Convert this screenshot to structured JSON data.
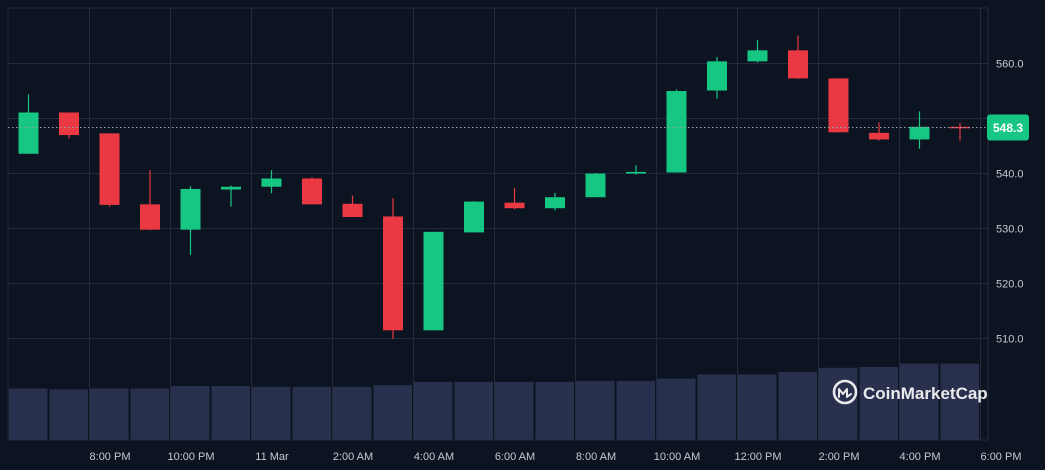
{
  "chart_data": {
    "type": "candlestick",
    "title": "",
    "xlabel": "",
    "ylabel": "",
    "ylim": [
      500,
      568
    ],
    "y_ticks": [
      510,
      520,
      530,
      540,
      550,
      560
    ],
    "y_tick_labels": [
      "510.0",
      "520.0",
      "530.0",
      "540.0",
      "",
      "560.0"
    ],
    "x_ticks": [
      "8:00 PM",
      "10:00 PM",
      "11 Mar",
      "2:00 AM",
      "4:00 AM",
      "6:00 AM",
      "8:00 AM",
      "10:00 AM",
      "12:00 PM",
      "2:00 PM",
      "4:00 PM",
      "6:00 PM"
    ],
    "grid": true,
    "current_price": 548.3,
    "current_price_label": "548.3",
    "candles": [
      {
        "o": 543.5,
        "h": 554.3,
        "l": 543.5,
        "c": 551.0
      },
      {
        "o": 551.0,
        "h": 551.0,
        "l": 546.3,
        "c": 546.9
      },
      {
        "o": 547.2,
        "h": 547.2,
        "l": 533.9,
        "c": 534.2
      },
      {
        "o": 534.3,
        "h": 540.5,
        "l": 529.6,
        "c": 529.7
      },
      {
        "o": 529.7,
        "h": 537.6,
        "l": 525.1,
        "c": 537.1
      },
      {
        "o": 537.0,
        "h": 537.7,
        "l": 533.9,
        "c": 537.5
      },
      {
        "o": 537.5,
        "h": 540.5,
        "l": 536.3,
        "c": 539.0
      },
      {
        "o": 539.0,
        "h": 539.2,
        "l": 534.3,
        "c": 534.3
      },
      {
        "o": 534.4,
        "h": 535.9,
        "l": 532.0,
        "c": 532.0
      },
      {
        "o": 532.1,
        "h": 535.4,
        "l": 509.8,
        "c": 511.4
      },
      {
        "o": 511.4,
        "h": 529.3,
        "l": 511.4,
        "c": 529.3
      },
      {
        "o": 529.2,
        "h": 534.9,
        "l": 529.2,
        "c": 534.8
      },
      {
        "o": 534.6,
        "h": 537.3,
        "l": 533.4,
        "c": 533.6
      },
      {
        "o": 533.6,
        "h": 536.4,
        "l": 533.2,
        "c": 535.6
      },
      {
        "o": 535.6,
        "h": 540.0,
        "l": 535.6,
        "c": 539.9
      },
      {
        "o": 539.9,
        "h": 541.4,
        "l": 539.7,
        "c": 540.2
      },
      {
        "o": 540.1,
        "h": 555.2,
        "l": 540.1,
        "c": 554.9
      },
      {
        "o": 555.0,
        "h": 561.1,
        "l": 553.5,
        "c": 560.3
      },
      {
        "o": 560.3,
        "h": 564.2,
        "l": 560.1,
        "c": 562.3
      },
      {
        "o": 562.3,
        "h": 565.0,
        "l": 557.1,
        "c": 557.2
      },
      {
        "o": 557.2,
        "h": 557.2,
        "l": 547.4,
        "c": 547.4
      },
      {
        "o": 547.3,
        "h": 549.2,
        "l": 545.9,
        "c": 546.1
      },
      {
        "o": 546.1,
        "h": 551.2,
        "l": 544.4,
        "c": 548.4
      },
      {
        "o": 548.4,
        "h": 549.1,
        "l": 545.9,
        "c": 548.3
      }
    ],
    "volume": [
      0.62,
      0.61,
      0.62,
      0.62,
      0.65,
      0.65,
      0.64,
      0.64,
      0.64,
      0.66,
      0.7,
      0.7,
      0.7,
      0.7,
      0.71,
      0.71,
      0.74,
      0.79,
      0.79,
      0.82,
      0.87,
      0.88,
      0.92,
      0.92
    ],
    "colors": {
      "up": "#16c784",
      "down": "#ea3943",
      "volume": "#28304d",
      "background": "#0d1421",
      "grid": "#222a3b",
      "axis_text": "#c4c9d4",
      "price_line": "#9aa1ad",
      "price_badge": "#16c784"
    }
  },
  "watermark": {
    "text": "CoinMarketCap",
    "icon": "coinmarketcap-logo-icon"
  }
}
